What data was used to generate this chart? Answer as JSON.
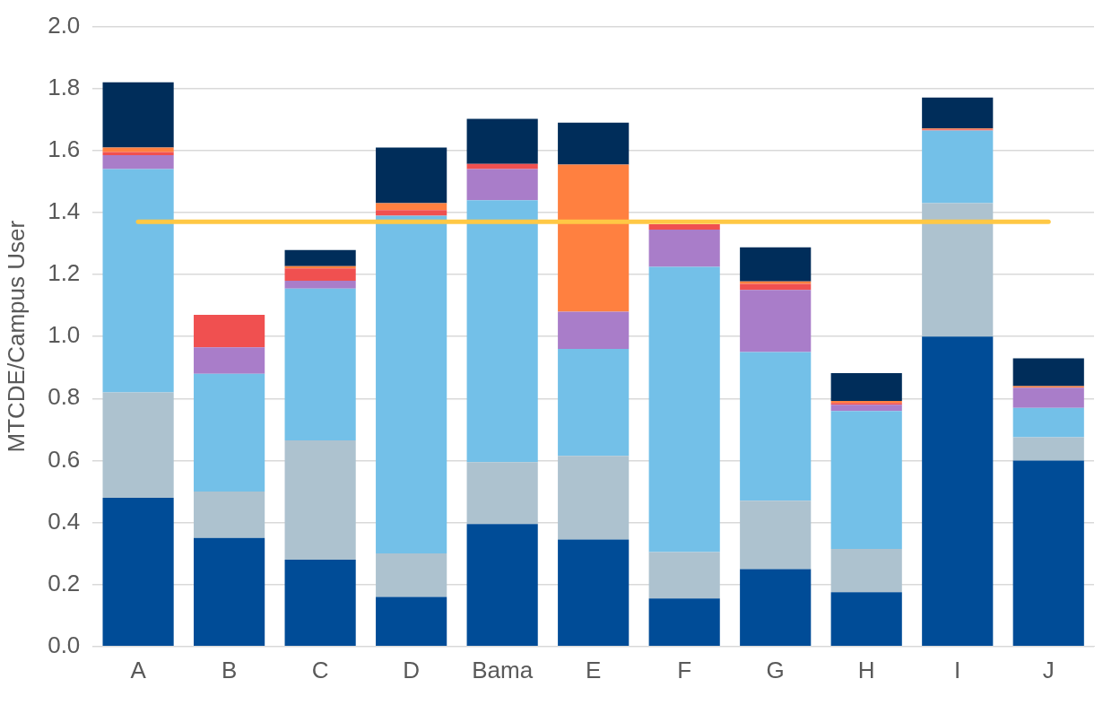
{
  "chart_data": {
    "type": "bar",
    "stacked": true,
    "ylabel": "MTCDE/Campus User",
    "categories": [
      "A",
      "B",
      "C",
      "D",
      "Bama",
      "E",
      "F",
      "G",
      "H",
      "I",
      "J"
    ],
    "series": [
      {
        "color": "#004c97",
        "values": [
          0.48,
          0.35,
          0.28,
          0.16,
          0.395,
          0.345,
          0.155,
          0.25,
          0.175,
          1.0,
          0.6
        ]
      },
      {
        "color": "#adc2cf",
        "values": [
          0.34,
          0.15,
          0.385,
          0.14,
          0.2,
          0.27,
          0.15,
          0.22,
          0.14,
          0.43,
          0.075
        ]
      },
      {
        "color": "#73c0e8",
        "values": [
          0.72,
          0.38,
          0.49,
          1.09,
          0.845,
          0.345,
          0.92,
          0.48,
          0.445,
          0.235,
          0.095
        ]
      },
      {
        "color": "#a97dc9",
        "values": [
          0.045,
          0.085,
          0.025,
          0,
          0.1,
          0.12,
          0.12,
          0.2,
          0.02,
          0,
          0.065
        ]
      },
      {
        "color": "#f05050",
        "values": [
          0.01,
          0.105,
          0.04,
          0.018,
          0.017,
          0,
          0.017,
          0.02,
          0.006,
          0.003,
          0
        ]
      },
      {
        "color": "#ff8040",
        "values": [
          0.015,
          0,
          0.007,
          0.022,
          0,
          0.475,
          0,
          0.008,
          0.006,
          0.003,
          0.005
        ]
      },
      {
        "color": "#002d5a",
        "values": [
          0.21,
          0,
          0.052,
          0.18,
          0.145,
          0.135,
          0,
          0.11,
          0.09,
          0.1,
          0.09
        ]
      }
    ],
    "ylim": [
      0,
      2
    ],
    "yticks": [
      {
        "value": 0,
        "label": "0.0"
      },
      {
        "value": 0.2,
        "label": "0.2"
      },
      {
        "value": 0.4,
        "label": "0.4"
      },
      {
        "value": 0.6,
        "label": "0.6"
      },
      {
        "value": 0.8,
        "label": "0.8"
      },
      {
        "value": 1,
        "label": "1.0"
      },
      {
        "value": 1.2,
        "label": "1.2"
      },
      {
        "value": 1.4,
        "label": "1.4"
      },
      {
        "value": 1.6,
        "label": "1.6"
      },
      {
        "value": 1.8,
        "label": "1.8"
      },
      {
        "value": 2,
        "label": "2.0"
      }
    ],
    "grid": "y",
    "legend": false,
    "ref_lines": [
      {
        "axis": "y",
        "value": 1.37,
        "color": "#ffc845"
      }
    ]
  }
}
